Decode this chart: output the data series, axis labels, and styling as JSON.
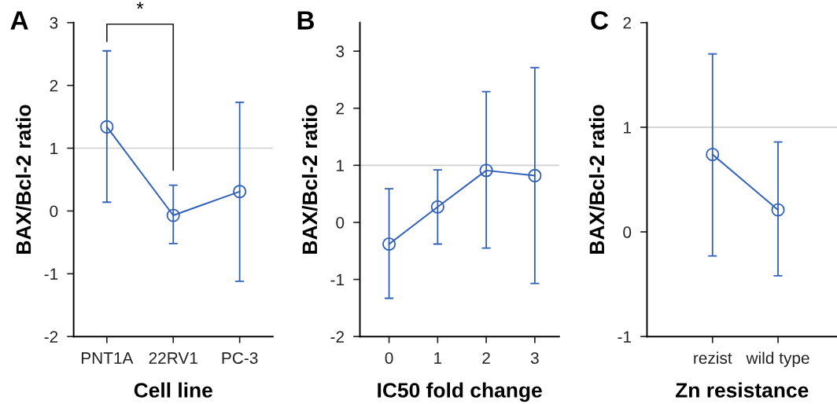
{
  "chart_data": [
    {
      "type": "line",
      "title": "A",
      "xlabel": "Cell line",
      "ylabel": "BAX/Bcl-2 ratio",
      "categories": [
        "PNT1A",
        "22RV1",
        "PC-3"
      ],
      "series": [
        {
          "color": "#3060b8",
          "values": [
            1.34,
            -0.07,
            0.31
          ],
          "errors": [
            [
              0.14,
              2.55
            ],
            [
              -0.52,
              0.41
            ],
            [
              -1.12,
              1.73
            ]
          ]
        }
      ],
      "ylim": [
        -2,
        3
      ],
      "yticks": [
        -2,
        -1,
        0,
        1,
        2,
        3
      ],
      "marker": "circle",
      "grid": false,
      "ref_lines": [
        {
          "axis": "y",
          "value": 1,
          "color": "#d0d0d0"
        }
      ],
      "annotations": [
        "*"
      ]
    },
    {
      "type": "line",
      "title": "B",
      "xlabel": "IC50 fold change",
      "ylabel": "BAX/Bcl-2 ratio",
      "x": [
        0,
        1,
        2,
        3
      ],
      "series": [
        {
          "color": "#3060b8",
          "values": [
            -0.38,
            0.27,
            0.91,
            0.82
          ],
          "errors": [
            [
              -1.33,
              0.59
            ],
            [
              -0.38,
              0.92
            ],
            [
              -0.45,
              2.29
            ],
            [
              -1.07,
              2.71
            ]
          ]
        }
      ],
      "xlim": [
        -0.6,
        3.5
      ],
      "xticks": [
        0,
        1,
        2,
        3
      ],
      "ylim": [
        -2,
        3.5
      ],
      "yticks": [
        -2,
        -1,
        0,
        1,
        2,
        3
      ],
      "marker": "circle",
      "grid": false,
      "ref_lines": [
        {
          "axis": "y",
          "value": 1,
          "color": "#d0d0d0"
        }
      ]
    },
    {
      "type": "line",
      "title": "C",
      "xlabel": "Zn resistance",
      "ylabel": "BAX/Bcl-2 ratio",
      "categories": [
        "rezist",
        "wild type"
      ],
      "series": [
        {
          "color": "#3060b8",
          "values": [
            0.74,
            0.21
          ],
          "errors": [
            [
              -0.23,
              1.7
            ],
            [
              -0.42,
              0.86
            ]
          ]
        }
      ],
      "ylim": [
        -1,
        2
      ],
      "yticks": [
        -1,
        0,
        1,
        2
      ],
      "marker": "circle",
      "grid": false,
      "ref_lines": [
        {
          "axis": "y",
          "value": 1,
          "color": "#d0d0d0"
        }
      ]
    }
  ]
}
